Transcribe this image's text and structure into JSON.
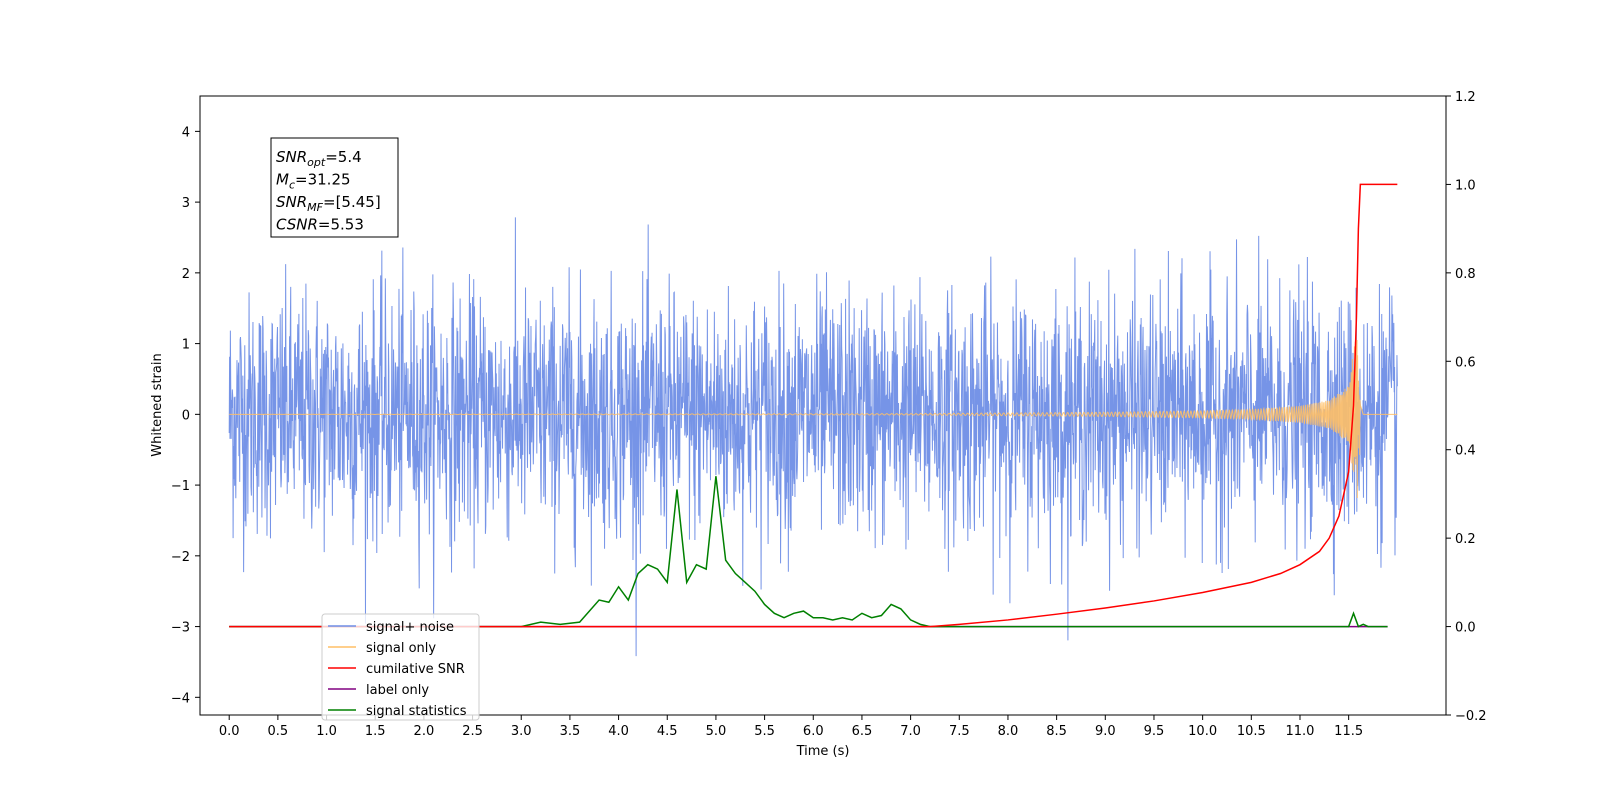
{
  "chart_data": {
    "type": "line",
    "xlabel": "Time (s)",
    "ylabel": "Whitened strain",
    "x_ticks": [
      0.0,
      0.5,
      1.0,
      1.5,
      2.0,
      2.5,
      3.0,
      3.5,
      4.0,
      4.5,
      5.0,
      5.5,
      6.0,
      6.5,
      7.0,
      7.5,
      8.0,
      8.5,
      9.0,
      9.5,
      10.0,
      10.5,
      11.0,
      11.5
    ],
    "x_tick_labels": [
      "0.0",
      "0.5",
      "1.0",
      "1.5",
      "2.0",
      "2.5",
      "3.0",
      "3.5",
      "4.0",
      "4.5",
      "5.0",
      "5.5",
      "6.0",
      "6.5",
      "7.0",
      "7.5",
      "8.0",
      "8.5",
      "9.0",
      "9.5",
      "10.0",
      "10.5",
      "11.0",
      "11.5"
    ],
    "xlim": [
      -0.3,
      12.5
    ],
    "y_ticks": [
      4,
      3,
      2,
      1,
      0,
      -1,
      -2,
      -3,
      -4
    ],
    "y_tick_labels": [
      "4",
      "3",
      "2",
      "1",
      "0",
      "−1",
      "−2",
      "−3",
      "−4"
    ],
    "ylim": [
      -4.25,
      4.5
    ],
    "y2_ticks": [
      1.2,
      1.0,
      0.8,
      0.6,
      0.4,
      0.2,
      0.0,
      -0.2
    ],
    "y2_tick_labels": [
      "1.2",
      "1.0",
      "0.8",
      "0.6",
      "0.4",
      "0.2",
      "0.0",
      "−0.2"
    ],
    "y2lim": [
      -0.2,
      1.2
    ],
    "grid": false,
    "legend_placement": "lower-left",
    "annotation": {
      "lines": [
        {
          "name": "SNR",
          "sub": "opt",
          "value": "=5.4"
        },
        {
          "name": "M",
          "sub": "c",
          "value": "=31.25"
        },
        {
          "name": "SNR",
          "sub": "MF",
          "value": "=[5.45]"
        },
        {
          "name": "CSNR",
          "sub": "",
          "value": "=5.53"
        }
      ]
    },
    "series": [
      {
        "name": "signal+ noise",
        "color": "#6f8ee6",
        "axis": "left",
        "x_range": [
          0,
          12.0
        ],
        "amplitude_std": 0.85
      },
      {
        "name": "signal only",
        "color": "#ffbf66",
        "axis": "left",
        "envelope": {
          "x": [
            0,
            7.0,
            8.0,
            9.0,
            10.0,
            10.5,
            11.0,
            11.3,
            11.5,
            11.55,
            11.6,
            11.62,
            11.65,
            12.0
          ],
          "y": [
            0,
            0.01,
            0.02,
            0.03,
            0.05,
            0.07,
            0.12,
            0.2,
            0.4,
            0.9,
            1.3,
            0.3,
            0,
            0
          ]
        }
      },
      {
        "name": "cumilative SNR",
        "color": "#ff0000",
        "axis": "right",
        "x": [
          0,
          7.2,
          7.5,
          8.0,
          8.5,
          9.0,
          9.5,
          10.0,
          10.5,
          10.8,
          11.0,
          11.2,
          11.3,
          11.4,
          11.5,
          11.55,
          11.58,
          11.6,
          11.62,
          11.65,
          12.0
        ],
        "y": [
          0,
          0,
          0.005,
          0.015,
          0.028,
          0.042,
          0.058,
          0.077,
          0.1,
          0.12,
          0.14,
          0.17,
          0.2,
          0.25,
          0.35,
          0.5,
          0.7,
          0.9,
          1.0,
          1.0,
          1.0
        ]
      },
      {
        "name": "label only",
        "color": "#800080",
        "axis": "right",
        "x": [
          0,
          11.9
        ],
        "y": [
          0,
          0
        ]
      },
      {
        "name": "signal statistics",
        "color": "#008000",
        "axis": "right",
        "x": [
          0,
          3.0,
          3.2,
          3.4,
          3.6,
          3.8,
          3.9,
          4.0,
          4.1,
          4.2,
          4.3,
          4.4,
          4.5,
          4.6,
          4.7,
          4.8,
          4.9,
          5.0,
          5.1,
          5.2,
          5.3,
          5.4,
          5.5,
          5.6,
          5.7,
          5.8,
          5.9,
          6.0,
          6.1,
          6.2,
          6.3,
          6.4,
          6.5,
          6.6,
          6.7,
          6.8,
          6.9,
          7.0,
          7.1,
          7.2,
          7.3,
          11.5,
          11.55,
          11.6,
          11.65,
          11.7,
          11.8,
          11.9
        ],
        "y": [
          0,
          0,
          0.01,
          0.005,
          0.01,
          0.06,
          0.055,
          0.09,
          0.06,
          0.12,
          0.14,
          0.13,
          0.1,
          0.31,
          0.1,
          0.14,
          0.13,
          0.34,
          0.15,
          0.12,
          0.1,
          0.08,
          0.05,
          0.03,
          0.02,
          0.03,
          0.035,
          0.02,
          0.02,
          0.015,
          0.02,
          0.015,
          0.03,
          0.02,
          0.025,
          0.05,
          0.04,
          0.015,
          0.005,
          0,
          0,
          0,
          0.03,
          0,
          0.005,
          0,
          0,
          0
        ]
      }
    ],
    "legend": [
      {
        "label": "signal+ noise",
        "color": "#6f8ee6"
      },
      {
        "label": "signal only",
        "color": "#ffbf66"
      },
      {
        "label": "cumilative SNR",
        "color": "#ff0000"
      },
      {
        "label": "label only",
        "color": "#800080"
      },
      {
        "label": "signal statistics",
        "color": "#008000"
      }
    ]
  }
}
